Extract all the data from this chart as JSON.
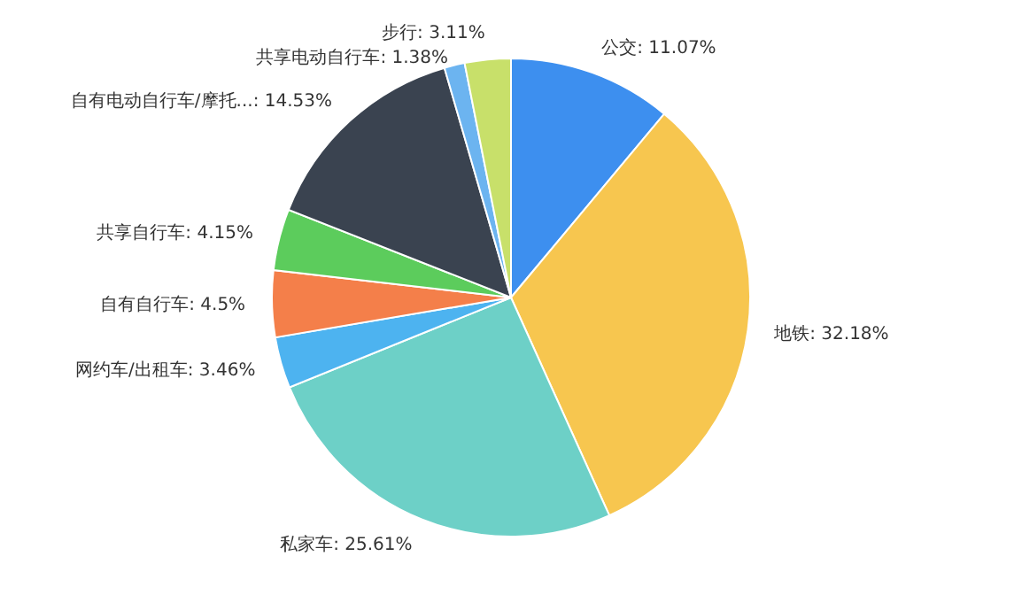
{
  "chart_data": {
    "type": "pie",
    "categories": [
      "公交",
      "地铁",
      "私家车",
      "网约车/出租车",
      "自有自行车",
      "共享自行车",
      "自有电动自行车/摩托...",
      "共享电动自行车",
      "步行"
    ],
    "values": [
      11.07,
      32.18,
      25.61,
      3.46,
      4.5,
      4.15,
      14.53,
      1.38,
      3.11
    ],
    "value_labels": [
      "11.07%",
      "32.18%",
      "25.61%",
      "3.46%",
      "4.5%",
      "4.15%",
      "14.53%",
      "1.38%",
      "3.11%"
    ],
    "colors": [
      "#3d8fef",
      "#f7c64f",
      "#6dd0c7",
      "#4db3f0",
      "#f47f4a",
      "#5ccc5c",
      "#3a4350",
      "#6cb4f0",
      "#c8e06a"
    ]
  }
}
